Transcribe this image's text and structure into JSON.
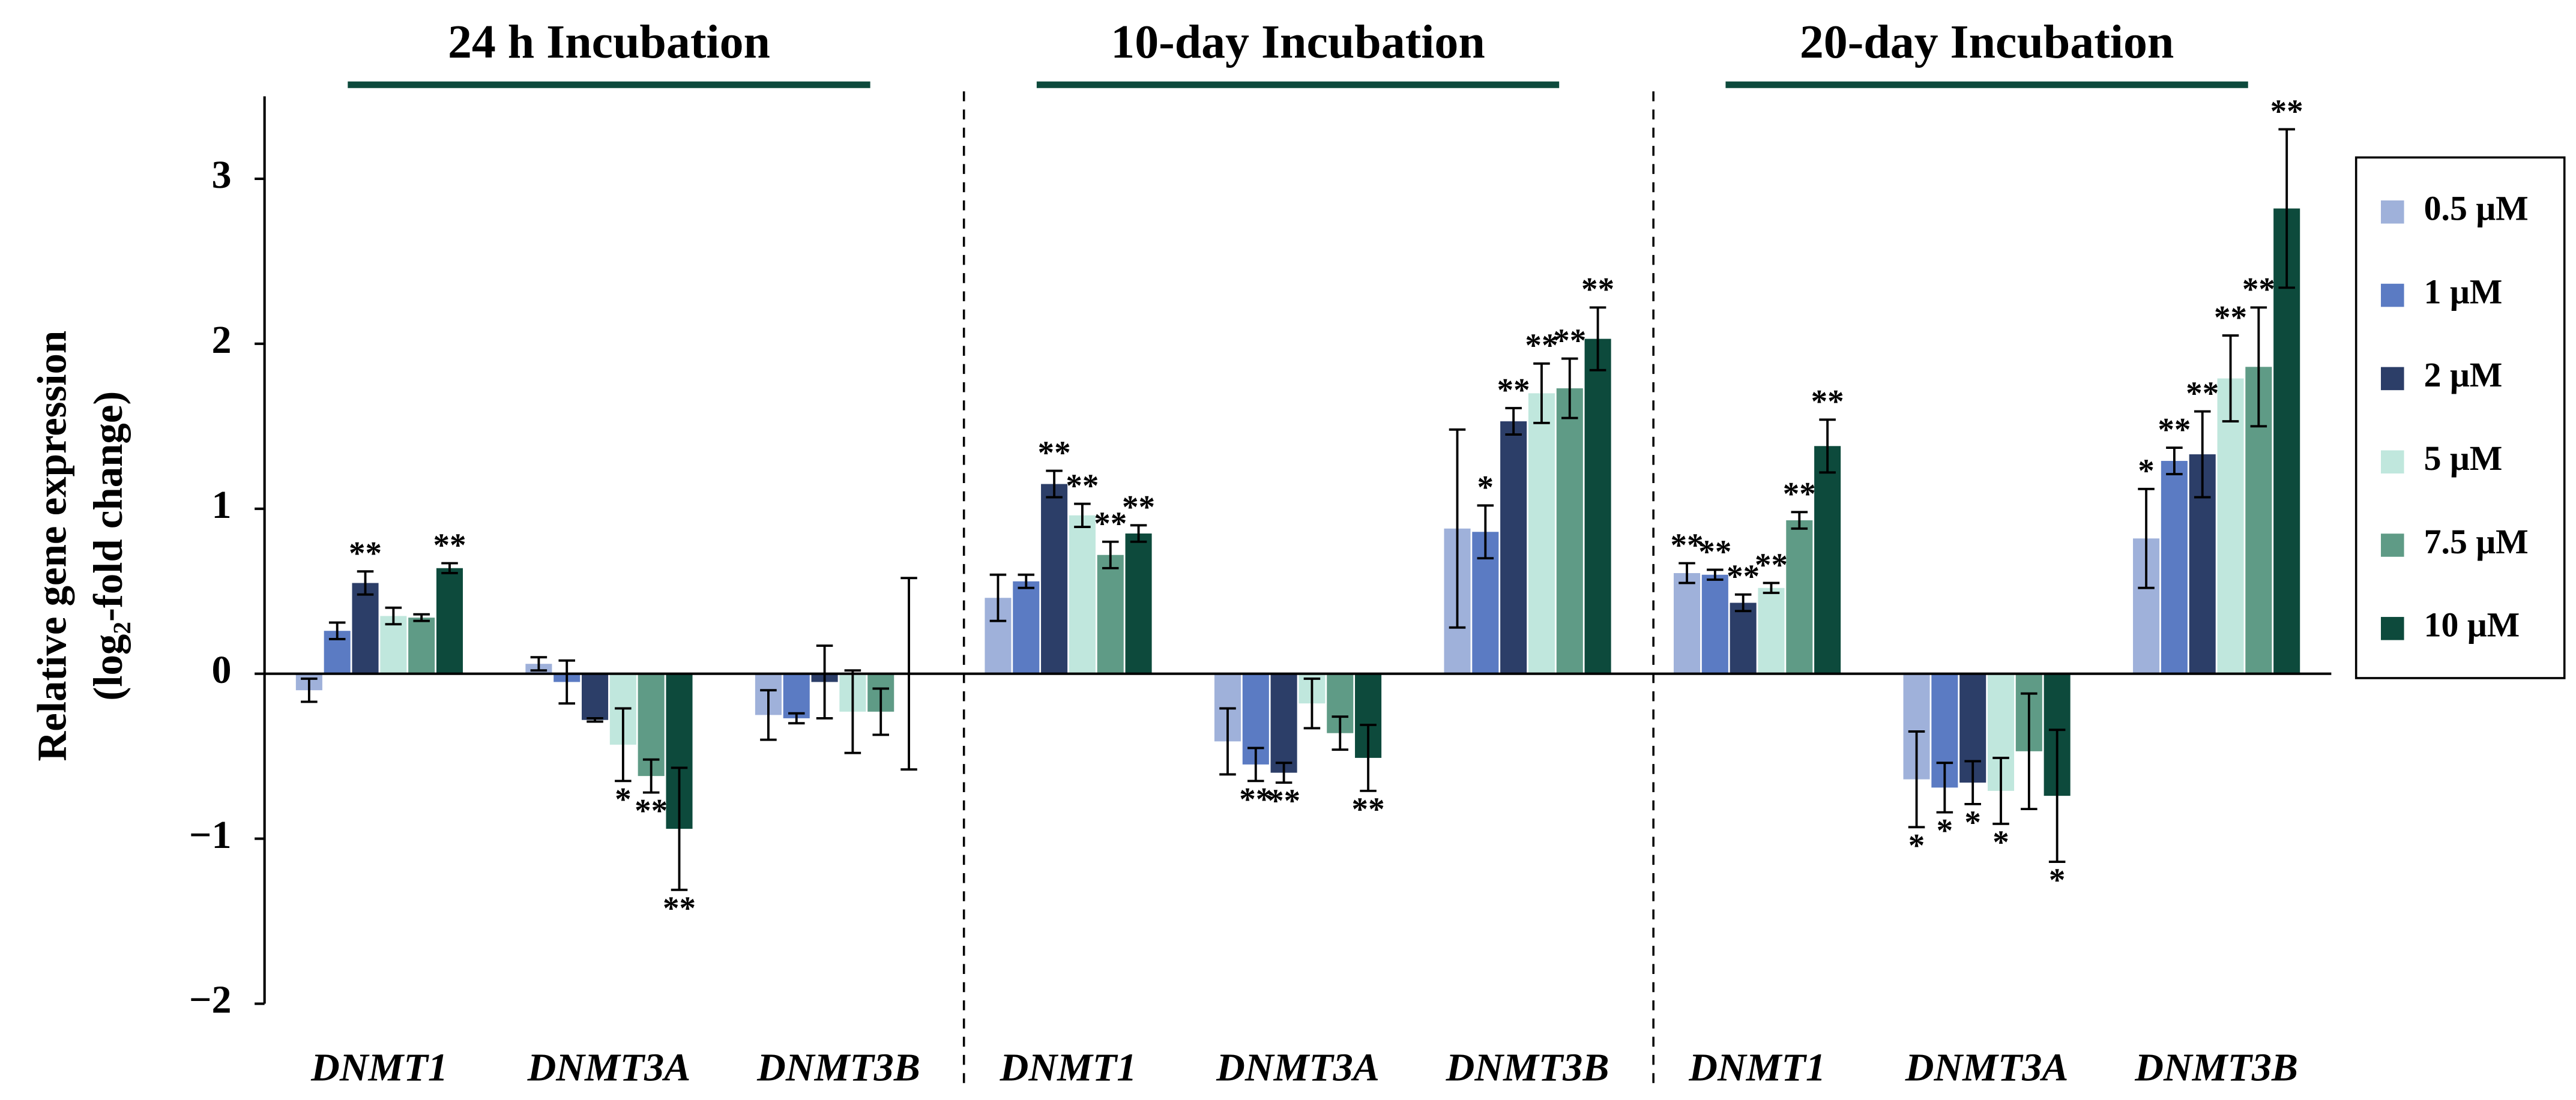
{
  "chart_data": {
    "type": "bar",
    "ylabel": [
      "Relative gene expression",
      "(log₂-fold change)"
    ],
    "panels": [
      {
        "title": "24 h Incubation",
        "categories": [
          "DNMT1",
          "DNMT3A",
          "DNMT3B"
        ]
      },
      {
        "title": "10-day Incubation",
        "categories": [
          "DNMT1",
          "DNMT3A",
          "DNMT3B"
        ]
      },
      {
        "title": "20-day Incubation",
        "categories": [
          "DNMT1",
          "DNMT3A",
          "DNMT3B"
        ]
      }
    ],
    "ylim": [
      -2,
      3.5
    ],
    "yticks": [
      {
        "value": -2,
        "label": "−2"
      },
      {
        "value": -1,
        "label": "−1"
      },
      0,
      1,
      2,
      3
    ],
    "series": [
      {
        "name": "0.5 μM",
        "color": "#9fb1da",
        "values": [
          -0.1,
          0.06,
          -0.25,
          0.46,
          -0.41,
          0.88,
          0.61,
          -0.64,
          0.82
        ],
        "errors": [
          0.07,
          0.04,
          0.15,
          0.14,
          0.2,
          0.6,
          0.06,
          0.29,
          0.3
        ],
        "significance": [
          null,
          null,
          null,
          null,
          null,
          null,
          "**",
          "*",
          "*"
        ]
      },
      {
        "name": "1 μM",
        "color": "#5b7bc3",
        "values": [
          0.26,
          -0.05,
          -0.27,
          0.56,
          -0.55,
          0.86,
          0.6,
          -0.69,
          1.29
        ],
        "errors": [
          0.05,
          0.13,
          0.03,
          0.04,
          0.1,
          0.16,
          0.03,
          0.15,
          0.08
        ],
        "significance": [
          null,
          null,
          null,
          null,
          "**",
          "*",
          "**",
          "*",
          "**"
        ]
      },
      {
        "name": "2 μM",
        "color": "#2c3e68",
        "values": [
          0.55,
          -0.28,
          -0.05,
          1.15,
          -0.6,
          1.53,
          0.43,
          -0.66,
          1.33
        ],
        "errors": [
          0.07,
          0.01,
          0.22,
          0.08,
          0.06,
          0.08,
          0.05,
          0.13,
          0.26
        ],
        "significance": [
          "**",
          null,
          null,
          "**",
          "**",
          "**",
          "**",
          "*",
          "**"
        ]
      },
      {
        "name": "5 μM",
        "color": "#c0e7dd",
        "values": [
          0.35,
          -0.43,
          -0.23,
          0.96,
          -0.18,
          1.7,
          0.52,
          -0.71,
          1.79
        ],
        "errors": [
          0.05,
          0.22,
          0.25,
          0.07,
          0.15,
          0.18,
          0.03,
          0.2,
          0.26
        ],
        "significance": [
          null,
          "*",
          null,
          "**",
          null,
          "**",
          "**",
          "*",
          "**"
        ]
      },
      {
        "name": "7.5 μM",
        "color": "#5f9b86",
        "values": [
          0.34,
          -0.62,
          -0.23,
          0.72,
          -0.36,
          1.73,
          0.93,
          -0.47,
          1.86
        ],
        "errors": [
          0.02,
          0.1,
          0.14,
          0.08,
          0.1,
          0.18,
          0.05,
          0.35,
          0.36
        ],
        "significance": [
          null,
          "**",
          null,
          "**",
          null,
          "**",
          "**",
          null,
          "**"
        ]
      },
      {
        "name": "10 μM",
        "color": "#0d4a3c",
        "values": [
          0.64,
          -0.94,
          0,
          0.85,
          -0.51,
          2.03,
          1.38,
          -0.74,
          2.82
        ],
        "errors": [
          0.03,
          0.37,
          0.58,
          0.05,
          0.2,
          0.19,
          0.16,
          0.4,
          0.48
        ],
        "significance": [
          "**",
          "**",
          null,
          "**",
          "**",
          "**",
          "**",
          "*",
          "**"
        ]
      }
    ]
  }
}
